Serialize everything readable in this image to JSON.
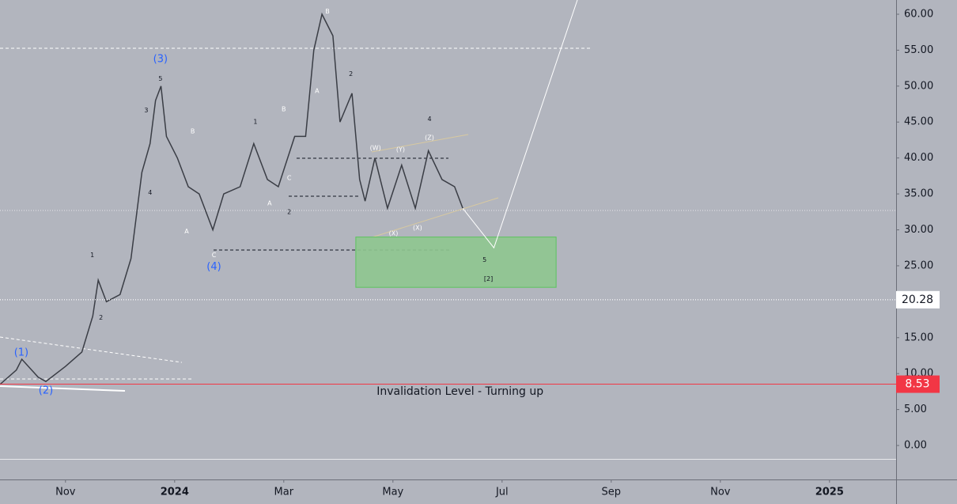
{
  "chart_data": {
    "type": "line",
    "x": [
      -1.2,
      -0.9,
      -0.8,
      -0.5,
      -0.36,
      0,
      0.3,
      0.5,
      0.6,
      0.75,
      1.0,
      1.2,
      1.4,
      1.55,
      1.65,
      1.75,
      1.85,
      2.05,
      2.25,
      2.45,
      2.7,
      2.9,
      3.2,
      3.45,
      3.7,
      3.9,
      4.2,
      4.4,
      4.55,
      4.7,
      4.9,
      5.03,
      5.25,
      5.39,
      5.49,
      5.67,
      5.9,
      6.16,
      6.41,
      6.65,
      6.9,
      7.13,
      7.28
    ],
    "values": [
      8.5,
      10.5,
      12,
      9.5,
      8.9,
      11,
      13,
      18,
      23,
      20,
      21,
      26,
      38,
      42,
      48,
      50,
      43,
      40,
      36,
      35,
      30,
      35,
      36,
      42,
      37,
      36,
      43,
      43,
      55,
      60,
      57,
      45,
      49,
      37,
      34,
      40,
      33,
      39,
      33,
      41,
      37,
      36,
      33
    ],
    "color": "#3a3d45",
    "projection": {
      "x": [
        7.28,
        7.85,
        9.38
      ],
      "values": [
        33,
        27.5,
        62
      ],
      "color": "#ffffff"
    },
    "zone": {
      "x": [
        5.32,
        8.99
      ],
      "y": [
        22,
        29
      ],
      "color": "#8ec68f"
    },
    "xlim": [
      -1.2,
      15.22
    ],
    "xticks": [
      {
        "value": 0,
        "label": "Nov"
      },
      {
        "value": 2,
        "label": "2024"
      },
      {
        "value": 4,
        "label": "Mar"
      },
      {
        "value": 6,
        "label": "May"
      },
      {
        "value": 8,
        "label": "Jul"
      },
      {
        "value": 10,
        "label": "Sep"
      },
      {
        "value": 12,
        "label": "Nov"
      },
      {
        "value": 14,
        "label": "2025"
      }
    ],
    "ylim": [
      -4.73,
      61.98
    ],
    "yticks": [
      {
        "value": 0,
        "label": "0.00"
      },
      {
        "value": 5,
        "label": "5.00"
      },
      {
        "value": 10,
        "label": "10.00"
      },
      {
        "value": 15,
        "label": "15.00"
      },
      {
        "value": 20,
        "label": "20.00"
      },
      {
        "value": 25,
        "label": "25.00"
      },
      {
        "value": 30,
        "label": "30.00"
      },
      {
        "value": 35,
        "label": "35.00"
      },
      {
        "value": 40,
        "label": "40.00"
      },
      {
        "value": 45,
        "label": "45.00"
      },
      {
        "value": 50,
        "label": "50.00"
      },
      {
        "value": 55,
        "label": "55.00"
      },
      {
        "value": 60,
        "label": "60.00"
      }
    ],
    "price_labels": [
      {
        "value": 20.28,
        "label": "20.28",
        "color": "#ffffff"
      },
      {
        "value": 8.53,
        "label": "8.53",
        "color": "#f23645"
      }
    ],
    "annotations": [
      {
        "text": "(1)",
        "x": -0.81,
        "y": 12.9,
        "color": "#2962ff"
      },
      {
        "text": "(2)",
        "x": -0.36,
        "y": 7.6,
        "color": "#2962ff"
      },
      {
        "text": "(3)",
        "x": 1.74,
        "y": 53.7,
        "color": "#2962ff"
      },
      {
        "text": "(4)",
        "x": 2.72,
        "y": 24.8,
        "color": "#2962ff"
      },
      {
        "text": "[2]",
        "x": 7.75,
        "y": 23.2,
        "color": "#131722"
      },
      {
        "text": "5",
        "x": 1.74,
        "y": 51,
        "color": "#131722"
      },
      {
        "text": "3",
        "x": 1.48,
        "y": 46.6,
        "color": "#131722"
      },
      {
        "text": "4",
        "x": 1.55,
        "y": 35.2,
        "color": "#131722"
      },
      {
        "text": "1",
        "x": 0.49,
        "y": 26.5,
        "color": "#131722"
      },
      {
        "text": "2",
        "x": 0.65,
        "y": 17.8,
        "color": "#131722"
      },
      {
        "text": "A",
        "x": 2.22,
        "y": 29.8,
        "color": "#ffffff"
      },
      {
        "text": "B",
        "x": 2.33,
        "y": 43.7,
        "color": "#ffffff"
      },
      {
        "text": "C",
        "x": 2.72,
        "y": 26.5,
        "color": "#ffffff"
      },
      {
        "text": "1",
        "x": 3.48,
        "y": 45,
        "color": "#131722"
      },
      {
        "text": "A",
        "x": 3.74,
        "y": 33.7,
        "color": "#ffffff"
      },
      {
        "text": "B",
        "x": 4,
        "y": 46.8,
        "color": "#ffffff"
      },
      {
        "text": "C",
        "x": 4.1,
        "y": 37.2,
        "color": "#ffffff"
      },
      {
        "text": "2",
        "x": 4.1,
        "y": 32.5,
        "color": "#131722"
      },
      {
        "text": "B",
        "x": 4.8,
        "y": 60.4,
        "color": "#ffffff"
      },
      {
        "text": "A",
        "x": 4.61,
        "y": 49.3,
        "color": "#ffffff"
      },
      {
        "text": "2",
        "x": 5.23,
        "y": 51.7,
        "color": "#131722"
      },
      {
        "text": "4",
        "x": 6.67,
        "y": 45.4,
        "color": "#131722"
      },
      {
        "text": "(W)",
        "x": 5.68,
        "y": 41.4,
        "color": "#ffffff"
      },
      {
        "text": "(Y)",
        "x": 6.14,
        "y": 41.2,
        "color": "#ffffff"
      },
      {
        "text": "(Z)",
        "x": 6.67,
        "y": 42.8,
        "color": "#ffffff"
      },
      {
        "text": "(X)",
        "x": 6.01,
        "y": 29.5,
        "color": "#ffffff"
      },
      {
        "text": "(X)",
        "x": 6.45,
        "y": 30.3,
        "color": "#ffffff"
      },
      {
        "text": "5",
        "x": 7.68,
        "y": 25.8,
        "color": "#131722"
      },
      {
        "text": "Invalidation Level - Turning up",
        "x": 7.23,
        "y": 7.5,
        "color": "#131722"
      }
    ]
  }
}
